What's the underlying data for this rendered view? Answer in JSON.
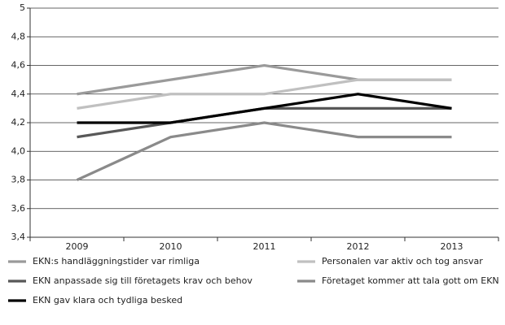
{
  "chart_data": {
    "type": "line",
    "categories": [
      "2009",
      "2010",
      "2011",
      "2012",
      "2013"
    ],
    "series": [
      {
        "name": "EKN:s handläggningstider var rimliga",
        "color": "#9a9a9a",
        "values": [
          4.4,
          4.5,
          4.6,
          4.5,
          4.5
        ]
      },
      {
        "name": "Personalen var aktiv och tog ansvar",
        "color": "#c0c0c0",
        "values": [
          4.3,
          4.4,
          4.4,
          4.5,
          4.5
        ]
      },
      {
        "name": " EKN anpassade sig till företagets krav och behov",
        "color": "#585858",
        "values": [
          4.1,
          4.2,
          4.3,
          4.3,
          4.3
        ]
      },
      {
        "name": "Företaget kommer att tala gott om EKN",
        "color": "#8a8a8a",
        "values": [
          3.8,
          4.1,
          4.2,
          4.1,
          4.1
        ]
      },
      {
        "name": "EKN gav klara och tydliga besked",
        "color": "#000000",
        "values": [
          4.2,
          4.2,
          4.3,
          4.4,
          4.3
        ]
      }
    ],
    "ylim": [
      3.4,
      5
    ],
    "yticks": [
      {
        "value": 3.4,
        "label": "3,4"
      },
      {
        "value": 3.6,
        "label": "3,6"
      },
      {
        "value": 3.8,
        "label": "3,8"
      },
      {
        "value": 4.0,
        "label": "4,0"
      },
      {
        "value": 4.2,
        "label": "4,2"
      },
      {
        "value": 4.4,
        "label": "4,4"
      },
      {
        "value": 4.6,
        "label": "4,6"
      },
      {
        "value": 4.8,
        "label": "4,8"
      },
      5
    ],
    "grid": true
  }
}
